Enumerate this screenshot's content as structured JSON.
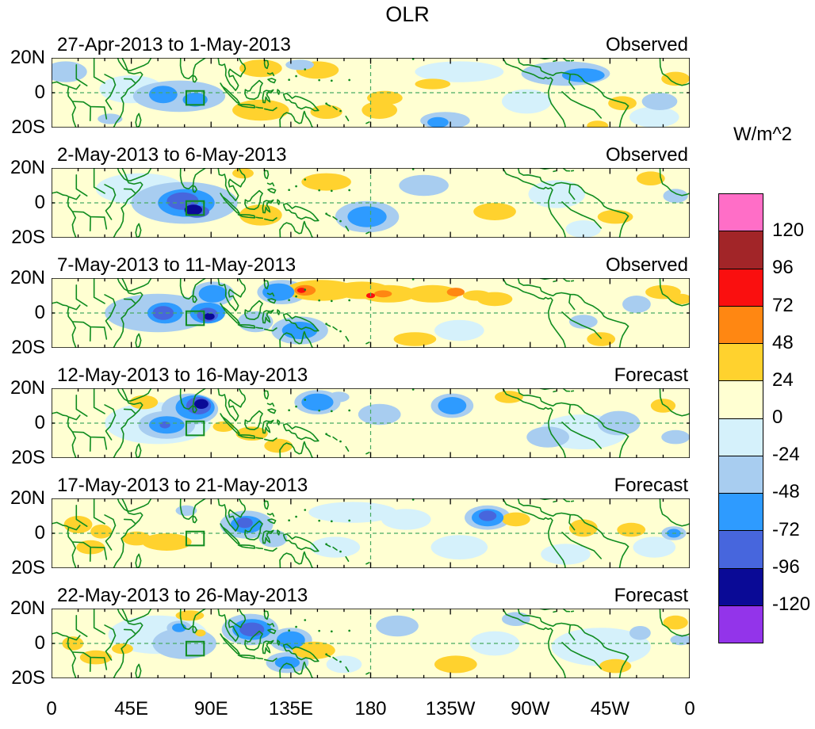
{
  "title": "OLR",
  "axes": {
    "x_tick_labels": [
      "0",
      "45E",
      "90E",
      "135E",
      "180",
      "135W",
      "90W",
      "45W",
      "0"
    ],
    "x_tick_lons": [
      0,
      45,
      90,
      135,
      180,
      225,
      270,
      315,
      360
    ],
    "y_tick_labels": [
      "20N",
      "0",
      "20S"
    ]
  },
  "colorbar": {
    "label": "W/m^2",
    "tick_values": [
      120,
      96,
      72,
      48,
      24,
      0,
      -24,
      -48,
      -72,
      -96,
      -120
    ],
    "colors_top_to_bottom": [
      "#ff6ec7",
      "#a22528",
      "#fa0f0f",
      "#ff8712",
      "#ffd22e",
      "#ffffd2",
      "#d5f1fb",
      "#a8cdf0",
      "#2e9bff",
      "#4766dd",
      "#0a0a96",
      "#9334ea"
    ]
  },
  "style": {
    "coast_green": "#0f8c1f",
    "grid_green": "#48ab62",
    "no_anomaly_fill": "#ffffd2"
  },
  "chart_data": {
    "type": "heatmap",
    "title": "OLR",
    "units": "W/m^2",
    "lat_range": [
      "20S",
      "20N"
    ],
    "lon_tick_labels": [
      "0",
      "45E",
      "90E",
      "135E",
      "180",
      "135W",
      "90W",
      "45W",
      "0"
    ],
    "levels": [
      -120,
      -96,
      -72,
      -48,
      -24,
      0,
      24,
      48,
      72,
      96,
      120
    ],
    "region_box": {
      "lon_min": 76,
      "lon_max": 86,
      "lat_min": -7,
      "lat_max": 1
    },
    "blob_format": [
      "lon_deg_east",
      "lat_deg_north",
      "radius_lon",
      "radius_lat",
      "anomaly_w_m2"
    ],
    "panels": [
      {
        "period": "27-Apr-2013 to 1-May-2013",
        "source": "Observed",
        "blobs": [
          [
            8,
            12,
            12,
            6,
            -30
          ],
          [
            45,
            2,
            18,
            8,
            -10
          ],
          [
            72,
            -2,
            26,
            9,
            -30
          ],
          [
            63,
            -1,
            8,
            5,
            -55
          ],
          [
            81,
            -4,
            7,
            4,
            -55
          ],
          [
            33,
            -15,
            7,
            3,
            -30
          ],
          [
            118,
            14,
            12,
            5,
            30
          ],
          [
            150,
            13,
            12,
            5,
            30
          ],
          [
            140,
            16,
            8,
            3,
            -30
          ],
          [
            118,
            -10,
            16,
            6,
            30
          ],
          [
            155,
            -11,
            9,
            4,
            30
          ],
          [
            185,
            -10,
            10,
            5,
            30
          ],
          [
            188,
            -3,
            10,
            4,
            30
          ],
          [
            215,
            5,
            10,
            3,
            30
          ],
          [
            222,
            -16,
            14,
            5,
            -30
          ],
          [
            218,
            -17,
            6,
            3,
            -55
          ],
          [
            230,
            12,
            25,
            6,
            -10
          ],
          [
            290,
            11,
            25,
            7,
            -30
          ],
          [
            300,
            10,
            12,
            4,
            -55
          ],
          [
            268,
            -5,
            14,
            7,
            -10
          ],
          [
            308,
            -19,
            6,
            3,
            30
          ],
          [
            322,
            -6,
            8,
            4,
            30
          ],
          [
            352,
            8,
            8,
            4,
            30
          ],
          [
            343,
            -5,
            10,
            5,
            -30
          ],
          [
            340,
            -14,
            14,
            6,
            -10
          ]
        ]
      },
      {
        "period": "2-May-2013 to 6-May-2013",
        "source": "Observed",
        "blobs": [
          [
            50,
            8,
            25,
            9,
            -10
          ],
          [
            75,
            0,
            30,
            12,
            -30
          ],
          [
            76,
            0,
            16,
            8,
            -55
          ],
          [
            74,
            1,
            9,
            5,
            -80
          ],
          [
            82,
            -5,
            7,
            3.5,
            -80
          ],
          [
            80,
            -4,
            5,
            3,
            -105
          ],
          [
            108,
            17,
            6,
            3,
            30
          ],
          [
            118,
            -7,
            12,
            6,
            30
          ],
          [
            155,
            12,
            14,
            5,
            30
          ],
          [
            178,
            -8,
            18,
            9,
            -30
          ],
          [
            178,
            -8,
            11,
            6,
            -55
          ],
          [
            210,
            10,
            14,
            6,
            -30
          ],
          [
            250,
            -5,
            12,
            5,
            30
          ],
          [
            285,
            5,
            16,
            8,
            -10
          ],
          [
            300,
            -15,
            10,
            5,
            -10
          ],
          [
            318,
            -8,
            10,
            4,
            30
          ],
          [
            352,
            4,
            7,
            4,
            -30
          ],
          [
            338,
            14,
            8,
            4,
            30
          ]
        ]
      },
      {
        "period": "7-May-2013 to 11-May-2013",
        "source": "Observed",
        "blobs": [
          [
            60,
            0,
            30,
            11,
            -30
          ],
          [
            64,
            0,
            10,
            6,
            -55
          ],
          [
            63,
            0,
            6,
            4,
            -80
          ],
          [
            88,
            0,
            10,
            6,
            -55
          ],
          [
            88,
            -1,
            6,
            4,
            -80
          ],
          [
            89,
            -2,
            3,
            2,
            -105
          ],
          [
            91,
            11,
            12,
            7,
            -30
          ],
          [
            91,
            11,
            8,
            5,
            -55
          ],
          [
            115,
            -5,
            10,
            6,
            -30
          ],
          [
            130,
            12,
            14,
            7,
            -30
          ],
          [
            128,
            12,
            9,
            5,
            -55
          ],
          [
            140,
            -10,
            16,
            8,
            -30
          ],
          [
            140,
            -10,
            10,
            5,
            -55
          ],
          [
            152,
            13,
            20,
            6,
            30
          ],
          [
            143,
            13,
            6,
            3,
            55
          ],
          [
            141,
            13,
            2.5,
            1.5,
            80
          ],
          [
            175,
            13,
            16,
            5,
            30
          ],
          [
            190,
            11,
            16,
            5,
            30
          ],
          [
            187,
            11,
            5,
            2,
            55
          ],
          [
            180,
            10,
            2.5,
            1.5,
            80
          ],
          [
            215,
            11,
            15,
            5,
            30
          ],
          [
            228,
            12,
            5,
            2.5,
            55
          ],
          [
            240,
            10,
            8,
            3,
            30
          ],
          [
            205,
            -15,
            12,
            4,
            30
          ],
          [
            230,
            -10,
            14,
            6,
            -10
          ],
          [
            250,
            8,
            10,
            4,
            30
          ],
          [
            300,
            -5,
            8,
            4,
            -30
          ],
          [
            330,
            5,
            8,
            5,
            -30
          ],
          [
            345,
            12,
            10,
            4,
            30
          ],
          [
            355,
            8,
            6,
            3,
            30
          ],
          [
            310,
            -15,
            8,
            4,
            30
          ]
        ]
      },
      {
        "period": "12-May-2013 to 16-May-2013",
        "source": "Forecast",
        "blobs": [
          [
            60,
            0,
            30,
            12,
            -10
          ],
          [
            78,
            8,
            16,
            9,
            -30
          ],
          [
            81,
            9,
            11,
            7,
            -55
          ],
          [
            83,
            10,
            7,
            5,
            -80
          ],
          [
            84.5,
            11,
            4,
            2.8,
            -105
          ],
          [
            65,
            -1,
            16,
            8,
            -30
          ],
          [
            65,
            -1,
            10,
            5,
            -55
          ],
          [
            64,
            -1,
            3,
            2,
            -80
          ],
          [
            52,
            12,
            8,
            4,
            30
          ],
          [
            97,
            -2,
            6,
            3,
            30
          ],
          [
            113,
            -6,
            9,
            4,
            30
          ],
          [
            128,
            -13,
            8,
            4,
            30
          ],
          [
            150,
            12,
            13,
            7,
            -30
          ],
          [
            150,
            12,
            9,
            5,
            -55
          ],
          [
            162,
            15,
            6,
            3,
            -30
          ],
          [
            185,
            5,
            12,
            6,
            -30
          ],
          [
            226,
            10,
            12,
            7,
            -30
          ],
          [
            226,
            10,
            8,
            5,
            -55
          ],
          [
            258,
            15,
            8,
            3.5,
            30
          ],
          [
            300,
            -5,
            25,
            10,
            -10
          ],
          [
            280,
            -8,
            12,
            6,
            -30
          ],
          [
            320,
            0,
            12,
            7,
            -30
          ],
          [
            345,
            10,
            7,
            4,
            30
          ],
          [
            352,
            -8,
            8,
            4,
            -30
          ]
        ]
      },
      {
        "period": "17-May-2013 to 21-May-2013",
        "source": "Forecast",
        "blobs": [
          [
            15,
            5,
            8,
            5,
            30
          ],
          [
            28,
            1,
            6,
            4,
            30
          ],
          [
            22,
            -8,
            8,
            4,
            30
          ],
          [
            48,
            -3,
            8,
            4,
            30
          ],
          [
            65,
            -5,
            14,
            5,
            30
          ],
          [
            76,
            13,
            6,
            3,
            -30
          ],
          [
            110,
            5,
            15,
            8,
            -30
          ],
          [
            110,
            5,
            9,
            5,
            -55
          ],
          [
            109,
            6,
            4.5,
            3,
            -80
          ],
          [
            125,
            -3,
            8,
            5,
            -30
          ],
          [
            170,
            12,
            25,
            6,
            -10
          ],
          [
            160,
            -8,
            14,
            6,
            -10
          ],
          [
            200,
            8,
            14,
            6,
            -10
          ],
          [
            246,
            9,
            13,
            7,
            -30
          ],
          [
            246,
            9,
            9,
            5,
            -55
          ],
          [
            246,
            10,
            5,
            3,
            -80
          ],
          [
            262,
            8,
            8,
            4,
            30
          ],
          [
            230,
            -8,
            16,
            7,
            -10
          ],
          [
            300,
            3,
            8,
            5,
            30
          ],
          [
            327,
            2,
            8,
            4,
            30
          ],
          [
            290,
            -12,
            14,
            6,
            -10
          ],
          [
            340,
            -8,
            12,
            6,
            -10
          ],
          [
            351,
            0,
            7,
            4,
            -30
          ],
          [
            351,
            0,
            4,
            2.5,
            -55
          ]
        ]
      },
      {
        "period": "22-May-2013 to 26-May-2013",
        "source": "Forecast",
        "blobs": [
          [
            60,
            5,
            28,
            11,
            -10
          ],
          [
            75,
            0,
            18,
            9,
            -30
          ],
          [
            72,
            9,
            7,
            4,
            -30
          ],
          [
            72,
            9,
            4,
            2.5,
            -55
          ],
          [
            84,
            6,
            3,
            2,
            30
          ],
          [
            78,
            16,
            8,
            3,
            30
          ],
          [
            112,
            8,
            16,
            9,
            -30
          ],
          [
            113,
            8,
            11,
            6,
            -55
          ],
          [
            113,
            8,
            7,
            4,
            -80
          ],
          [
            135,
            2,
            12,
            7,
            -30
          ],
          [
            135,
            2,
            8,
            5,
            -55
          ],
          [
            133,
            -11,
            12,
            6,
            -30
          ],
          [
            133,
            -11,
            7,
            3.5,
            -55
          ],
          [
            12,
            0,
            6,
            4,
            30
          ],
          [
            25,
            -8,
            9,
            4,
            30
          ],
          [
            40,
            -3,
            6,
            3,
            30
          ],
          [
            148,
            -4,
            12,
            5,
            30
          ],
          [
            165,
            -12,
            10,
            5,
            -10
          ],
          [
            195,
            10,
            12,
            6,
            -30
          ],
          [
            228,
            -12,
            12,
            5,
            30
          ],
          [
            250,
            0,
            14,
            7,
            -10
          ],
          [
            262,
            14,
            8,
            4,
            -30
          ],
          [
            310,
            -2,
            28,
            11,
            -10
          ],
          [
            332,
            6,
            6,
            4,
            -30
          ],
          [
            318,
            -13,
            9,
            4,
            30
          ],
          [
            352,
            12,
            7,
            4,
            30
          ],
          [
            355,
            2,
            6,
            3,
            -30
          ]
        ]
      }
    ]
  }
}
